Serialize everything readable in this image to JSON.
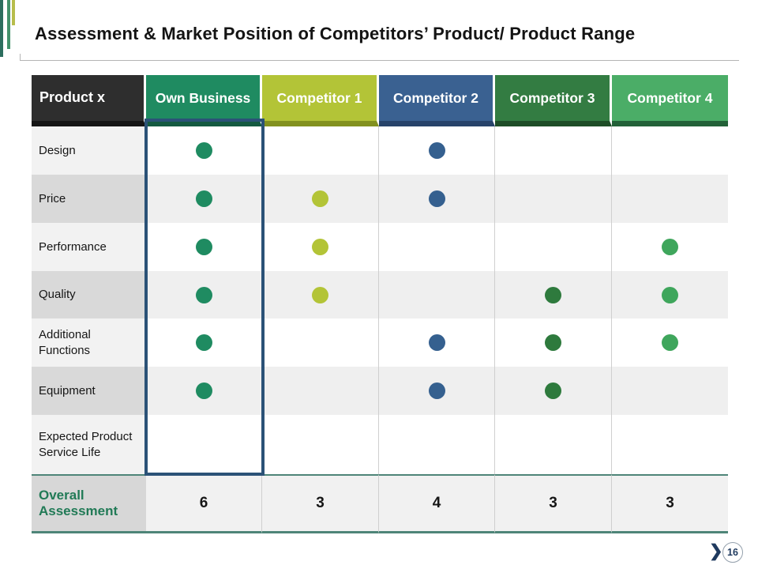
{
  "title": "Assessment & Market Position of Competitors’ Product/ Product Range",
  "footer": {
    "next_icon": "❯",
    "page_number": "16"
  },
  "decor": {
    "stripes": [
      {
        "name": "teal",
        "color": "#2d6e5e"
      },
      {
        "name": "green",
        "color": "#43916b"
      },
      {
        "name": "olive",
        "color": "#b7bd4c"
      }
    ]
  },
  "table": {
    "highlight_border_color": "#2b5277",
    "row_shades": {
      "light_label": "#f2f2f2",
      "dark_label": "#d9d9d9",
      "light_cell": "#ffffff",
      "dark_cell": "#efefef"
    },
    "header": [
      {
        "label": "Product x",
        "bg": "#2e2e2e",
        "accent": "#151515",
        "dot": null
      },
      {
        "label": "Own Business",
        "bg": "#1f8b61",
        "accent": "#145a40",
        "dot": "#1f8b61"
      },
      {
        "label": "Competitor 1",
        "bg": "#b3c437",
        "accent": "#82911f",
        "dot": "#b3c437"
      },
      {
        "label": "Competitor 2",
        "bg": "#3a6191",
        "accent": "#27436a",
        "dot": "#35608f"
      },
      {
        "label": "Competitor 3",
        "bg": "#337c42",
        "accent": "#1e4d27",
        "dot": "#2e7a3d"
      },
      {
        "label": "Competitor 4",
        "bg": "#4bad67",
        "accent": "#236138",
        "dot": "#3fa65c"
      }
    ],
    "rows": [
      {
        "label": "Design",
        "dots": [
          1,
          0,
          1,
          0,
          0
        ]
      },
      {
        "label": "Price",
        "dots": [
          1,
          1,
          1,
          0,
          0
        ]
      },
      {
        "label": "Performance",
        "dots": [
          1,
          1,
          0,
          0,
          1
        ]
      },
      {
        "label": "Quality",
        "dots": [
          1,
          1,
          0,
          1,
          1
        ]
      },
      {
        "label": "Additional Functions",
        "dots": [
          1,
          0,
          1,
          1,
          1
        ]
      },
      {
        "label": "Equipment",
        "dots": [
          1,
          0,
          1,
          1,
          0
        ]
      },
      {
        "label": "Expected Product Service Life",
        "dots": [
          0,
          0,
          0,
          0,
          0
        ]
      }
    ],
    "overall": {
      "label": "Overall Assessment",
      "values": [
        "6",
        "3",
        "4",
        "3",
        "3"
      ],
      "label_color": "#217a56",
      "border_color": "#4e8578"
    }
  }
}
